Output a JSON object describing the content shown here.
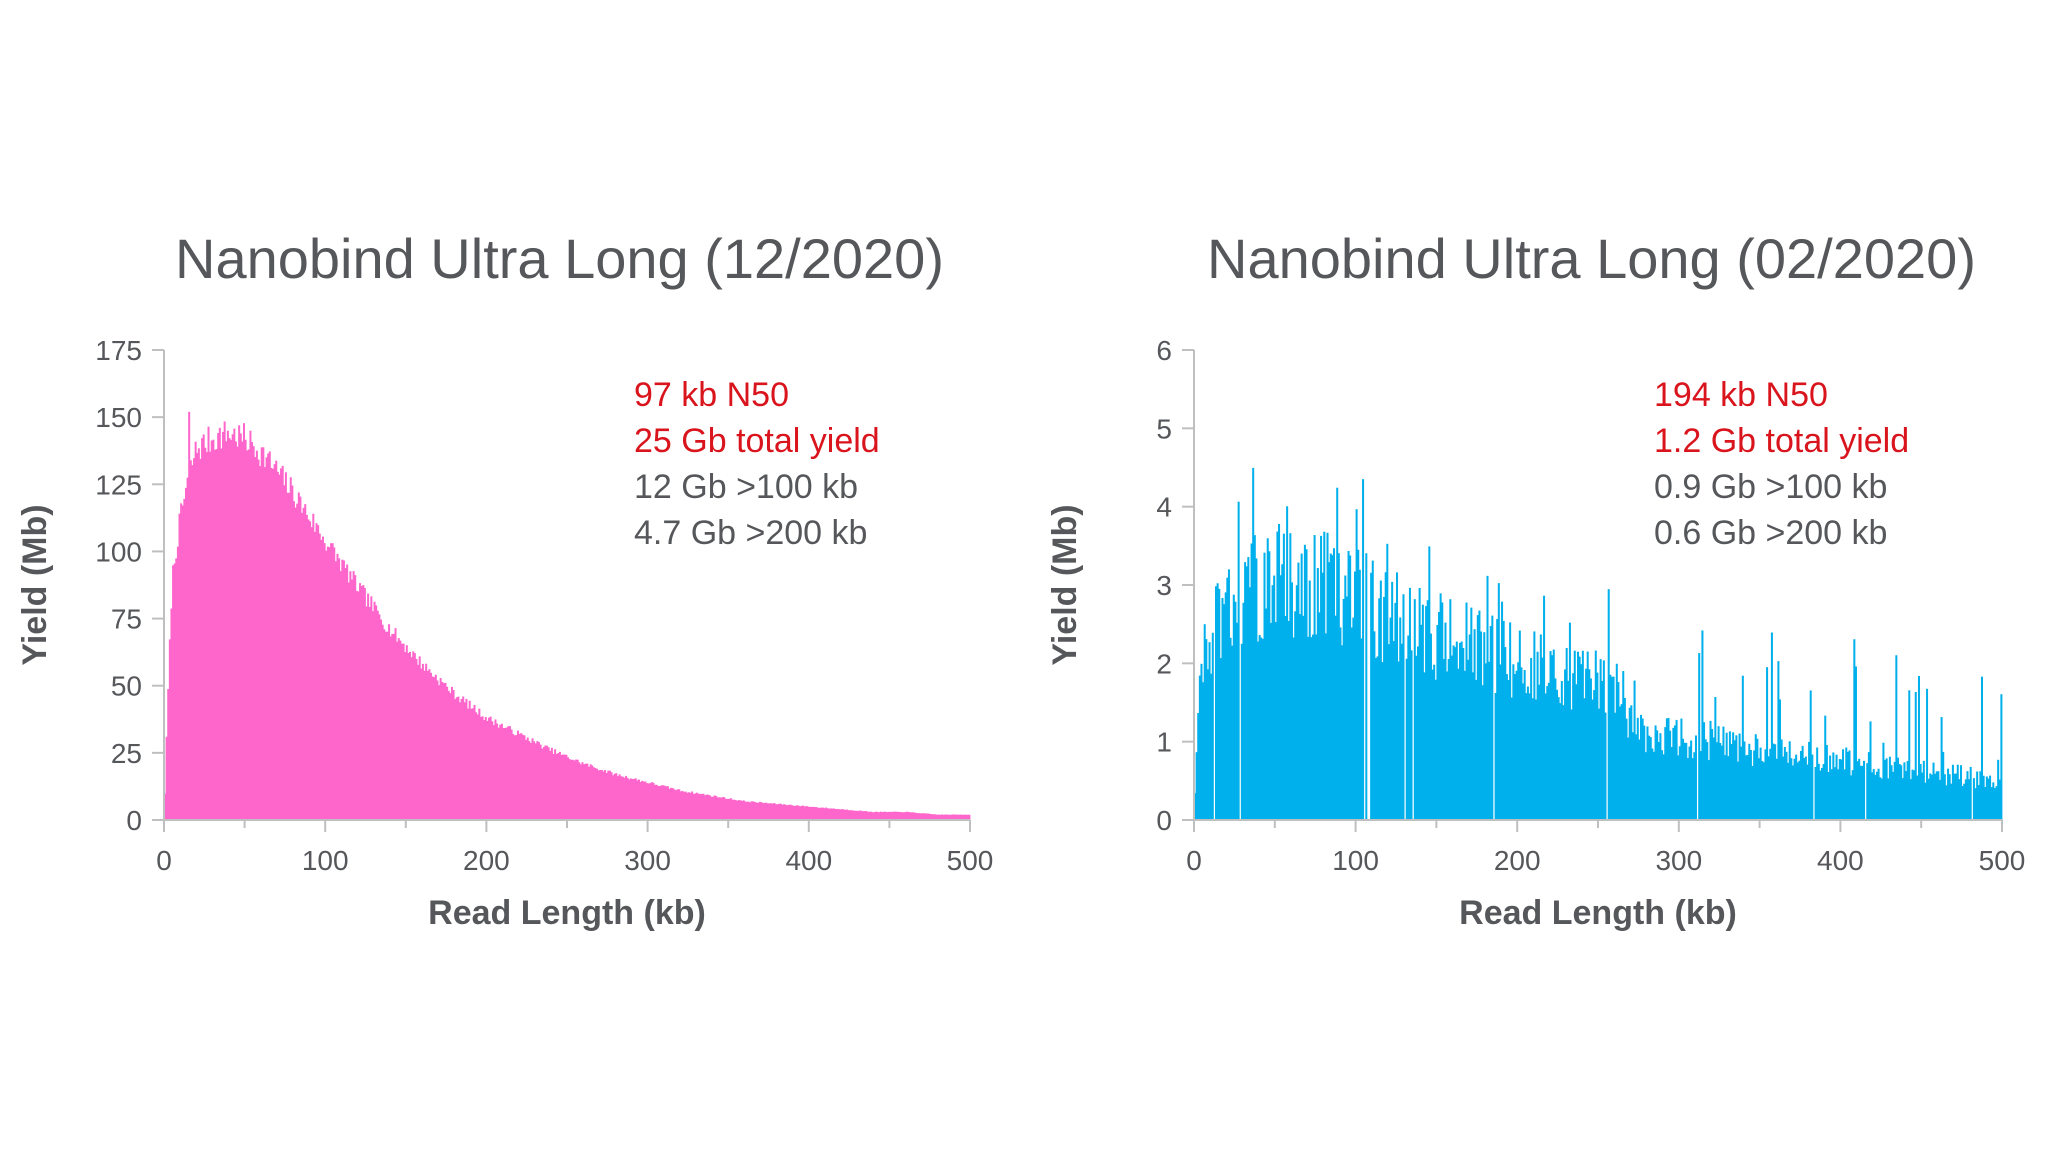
{
  "chart_data": [
    {
      "type": "bar",
      "title": "Nanobind Ultra Long (12/2020)",
      "xlabel": "Read Length (kb)",
      "ylabel": "Yield (Mb)",
      "xlim": [
        0,
        500
      ],
      "ylim": [
        0,
        175
      ],
      "x_ticks": [
        "0",
        "100",
        "200",
        "300",
        "400",
        "500"
      ],
      "y_ticks": [
        "0",
        "25",
        "50",
        "75",
        "100",
        "125",
        "150",
        "175"
      ],
      "color": "#ff66cc",
      "grid": false,
      "annotations": [
        {
          "text": "97 kb N50",
          "color": "#d9141c"
        },
        {
          "text": "25 Gb total yield",
          "color": "#d9141c"
        },
        {
          "text": "12 Gb >100 kb",
          "color": "#55575a"
        },
        {
          "text": "4.7 Gb >200 kb",
          "color": "#55575a"
        }
      ],
      "profile": {
        "x": [
          0,
          2,
          5,
          10,
          15,
          20,
          30,
          40,
          50,
          60,
          70,
          80,
          90,
          100,
          120,
          140,
          160,
          180,
          200,
          220,
          240,
          260,
          280,
          300,
          320,
          340,
          360,
          380,
          400,
          420,
          440,
          460,
          480,
          500
        ],
        "y": [
          0,
          40,
          90,
          112,
          128,
          138,
          142,
          144,
          142,
          137,
          130,
          122,
          113,
          104,
          87,
          71,
          58,
          47,
          38,
          32,
          26,
          21,
          17,
          14,
          11,
          9,
          7,
          6,
          5,
          4,
          3,
          3,
          2,
          2
        ]
      }
    },
    {
      "type": "bar",
      "title": "Nanobind Ultra Long (02/2020)",
      "xlabel": "Read Length (kb)",
      "ylabel": "Yield (Mb)",
      "xlim": [
        0,
        500
      ],
      "ylim": [
        0,
        6
      ],
      "x_ticks": [
        "0",
        "100",
        "200",
        "300",
        "400",
        "500"
      ],
      "y_ticks": [
        "0",
        "1",
        "2",
        "3",
        "4",
        "5",
        "6"
      ],
      "color": "#00b0ec",
      "grid": false,
      "annotations": [
        {
          "text": "194 kb N50",
          "color": "#d9141c"
        },
        {
          "text": "1.2 Gb total yield",
          "color": "#d9141c"
        },
        {
          "text": "0.9 Gb >100 kb",
          "color": "#55575a"
        },
        {
          "text": "0.6 Gb >200 kb",
          "color": "#55575a"
        }
      ],
      "profile": {
        "x": [
          0,
          2,
          5,
          10,
          20,
          30,
          40,
          60,
          80,
          100,
          120,
          140,
          160,
          180,
          200,
          220,
          240,
          260,
          270,
          280,
          300,
          320,
          340,
          360,
          380,
          400,
          420,
          440,
          460,
          480,
          500
        ],
        "y": [
          0,
          1.4,
          1.9,
          2.3,
          2.6,
          2.8,
          2.95,
          3.1,
          3.0,
          2.85,
          2.6,
          2.45,
          2.3,
          2.15,
          2.05,
          1.9,
          1.8,
          1.7,
          1.2,
          1.15,
          1.05,
          1.0,
          0.9,
          0.85,
          0.8,
          0.75,
          0.7,
          0.65,
          0.6,
          0.55,
          0.5
        ]
      }
    }
  ]
}
